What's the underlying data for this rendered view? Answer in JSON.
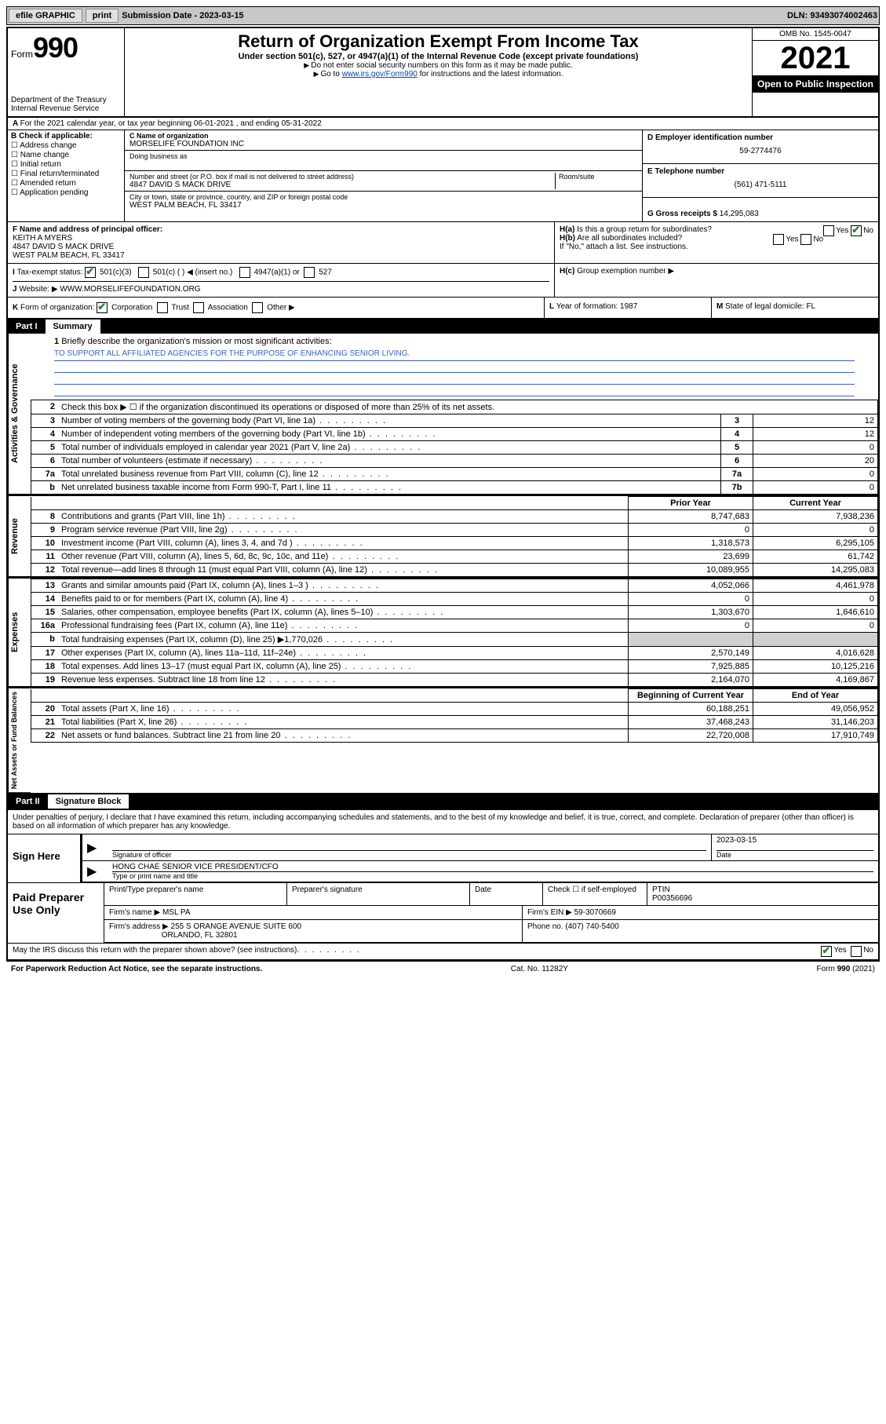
{
  "topbar": {
    "efile": "efile GRAPHIC",
    "print": "print",
    "subdate_label": "Submission Date - ",
    "subdate": "2023-03-15",
    "dln_label": "DLN: ",
    "dln": "93493074002463"
  },
  "header": {
    "form_prefix": "Form",
    "form_num": "990",
    "title": "Return of Organization Exempt From Income Tax",
    "sub": "Under section 501(c), 527, or 4947(a)(1) of the Internal Revenue Code (except private foundations)",
    "note1": "Do not enter social security numbers on this form as it may be made public.",
    "note2_pre": "Go to ",
    "note2_link": "www.irs.gov/Form990",
    "note2_post": " for instructions and the latest information.",
    "dept": "Department of the Treasury\nInternal Revenue Service",
    "omb": "OMB No. 1545-0047",
    "year": "2021",
    "inspection": "Open to Public Inspection"
  },
  "rowA": "For the 2021 calendar year, or tax year beginning 06-01-2021   , and ending 05-31-2022",
  "colB": {
    "title": "B Check if applicable:",
    "opts": [
      "Address change",
      "Name change",
      "Initial return",
      "Final return/terminated",
      "Amended return",
      "Application pending"
    ]
  },
  "nameBlock": {
    "c_label": "C Name of organization",
    "name": "MORSELIFE FOUNDATION INC",
    "dba_label": "Doing business as",
    "street_label": "Number and street (or P.O. box if mail is not delivered to street address)",
    "room_label": "Room/suite",
    "street": "4847 DAVID S MACK DRIVE",
    "city_label": "City or town, state or province, country, and ZIP or foreign postal code",
    "city": "WEST PALM BEACH, FL  33417"
  },
  "rightBlock": {
    "ein_label": "D Employer identification number",
    "ein": "59-2774476",
    "phone_label": "E Telephone number",
    "phone": "(561) 471-5111",
    "gross_label": "G Gross receipts $ ",
    "gross": "14,295,083"
  },
  "rowF": {
    "label": "F  Name and address of principal officer:",
    "name": "KEITH A MYERS",
    "addr1": "4847 DAVID S MACK DRIVE",
    "addr2": "WEST PALM BEACH, FL  33417"
  },
  "rowH": {
    "ha": "Is this a group return for subordinates?",
    "hb": "Are all subordinates included?",
    "hb_note": "If \"No,\" attach a list. See instructions.",
    "hc": "Group exemption number ▶"
  },
  "rowI": {
    "label": "Tax-exempt status:",
    "o1": "501(c)(3)",
    "o2": "501(c) (  ) ◀ (insert no.)",
    "o3": "4947(a)(1) or",
    "o4": "527"
  },
  "rowJ": {
    "label": "Website: ▶ ",
    "value": "WWW.MORSELIFEFOUNDATION.ORG"
  },
  "rowK": "Form of organization:",
  "rowK_opts": [
    "Corporation",
    "Trust",
    "Association",
    "Other ▶"
  ],
  "rowL": "Year of formation: 1987",
  "rowM": "State of legal domicile: FL",
  "part1": {
    "part": "Part I",
    "title": "Summary"
  },
  "mission": {
    "q": "Briefly describe the organization's mission or most significant activities:",
    "text": "TO SUPPORT ALL AFFILIATED AGENCIES FOR THE PURPOSE OF ENHANCING SENIOR LIVING."
  },
  "gov_lines": [
    {
      "n": "2",
      "d": "Check this box ▶ ☐  if the organization discontinued its operations or disposed of more than 25% of its net assets."
    },
    {
      "n": "3",
      "d": "Number of voting members of the governing body (Part VI, line 1a)",
      "box": "3",
      "v": "12"
    },
    {
      "n": "4",
      "d": "Number of independent voting members of the governing body (Part VI, line 1b)",
      "box": "4",
      "v": "12"
    },
    {
      "n": "5",
      "d": "Total number of individuals employed in calendar year 2021 (Part V, line 2a)",
      "box": "5",
      "v": "0"
    },
    {
      "n": "6",
      "d": "Total number of volunteers (estimate if necessary)",
      "box": "6",
      "v": "20"
    },
    {
      "n": "7a",
      "d": "Total unrelated business revenue from Part VIII, column (C), line 12",
      "box": "7a",
      "v": "0"
    },
    {
      "n": "b",
      "d": "Net unrelated business taxable income from Form 990-T, Part I, line 11",
      "box": "7b",
      "v": "0"
    }
  ],
  "rev_hdr": {
    "prior": "Prior Year",
    "curr": "Current Year"
  },
  "rev_lines": [
    {
      "n": "8",
      "d": "Contributions and grants (Part VIII, line 1h)",
      "p": "8,747,683",
      "c": "7,938,236"
    },
    {
      "n": "9",
      "d": "Program service revenue (Part VIII, line 2g)",
      "p": "0",
      "c": "0"
    },
    {
      "n": "10",
      "d": "Investment income (Part VIII, column (A), lines 3, 4, and 7d )",
      "p": "1,318,573",
      "c": "6,295,105"
    },
    {
      "n": "11",
      "d": "Other revenue (Part VIII, column (A), lines 5, 6d, 8c, 9c, 10c, and 11e)",
      "p": "23,699",
      "c": "61,742"
    },
    {
      "n": "12",
      "d": "Total revenue—add lines 8 through 11 (must equal Part VIII, column (A), line 12)",
      "p": "10,089,955",
      "c": "14,295,083"
    }
  ],
  "exp_lines": [
    {
      "n": "13",
      "d": "Grants and similar amounts paid (Part IX, column (A), lines 1–3 )",
      "p": "4,052,066",
      "c": "4,461,978"
    },
    {
      "n": "14",
      "d": "Benefits paid to or for members (Part IX, column (A), line 4)",
      "p": "0",
      "c": "0"
    },
    {
      "n": "15",
      "d": "Salaries, other compensation, employee benefits (Part IX, column (A), lines 5–10)",
      "p": "1,303,670",
      "c": "1,646,610"
    },
    {
      "n": "16a",
      "d": "Professional fundraising fees (Part IX, column (A), line 11e)",
      "p": "0",
      "c": "0"
    },
    {
      "n": "b",
      "d": "Total fundraising expenses (Part IX, column (D), line 25) ▶1,770,026",
      "p": "",
      "c": "",
      "shade": true
    },
    {
      "n": "17",
      "d": "Other expenses (Part IX, column (A), lines 11a–11d, 11f–24e)",
      "p": "2,570,149",
      "c": "4,016,628"
    },
    {
      "n": "18",
      "d": "Total expenses. Add lines 13–17 (must equal Part IX, column (A), line 25)",
      "p": "7,925,885",
      "c": "10,125,216"
    },
    {
      "n": "19",
      "d": "Revenue less expenses. Subtract line 18 from line 12",
      "p": "2,164,070",
      "c": "4,169,867"
    }
  ],
  "net_hdr": {
    "prior": "Beginning of Current Year",
    "curr": "End of Year"
  },
  "net_lines": [
    {
      "n": "20",
      "d": "Total assets (Part X, line 16)",
      "p": "60,188,251",
      "c": "49,056,952"
    },
    {
      "n": "21",
      "d": "Total liabilities (Part X, line 26)",
      "p": "37,468,243",
      "c": "31,146,203"
    },
    {
      "n": "22",
      "d": "Net assets or fund balances. Subtract line 21 from line 20",
      "p": "22,720,008",
      "c": "17,910,749"
    }
  ],
  "part2": {
    "part": "Part II",
    "title": "Signature Block"
  },
  "penalties": "Under penalties of perjury, I declare that I have examined this return, including accompanying schedules and statements, and to the best of my knowledge and belief, it is true, correct, and complete. Declaration of preparer (other than officer) is based on all information of which preparer has any knowledge.",
  "sign": {
    "here": "Sign Here",
    "sig_label": "Signature of officer",
    "date": "2023-03-15",
    "date_label": "Date",
    "name": "HONG CHAE  SENIOR VICE PRESIDENT/CFO",
    "name_label": "Type or print name and title"
  },
  "paid": {
    "title": "Paid Preparer Use Only",
    "h1": "Print/Type preparer's name",
    "h2": "Preparer's signature",
    "h3": "Date",
    "h4_a": "Check ☐ if self-employed",
    "h4_b": "PTIN",
    "ptin": "P00356696",
    "firm_label": "Firm's name    ▶",
    "firm": "MSL PA",
    "firm_ein_label": "Firm's EIN ▶",
    "firm_ein": "59-3070669",
    "addr_label": "Firm's address ▶",
    "addr1": "255 S ORANGE AVENUE SUITE 600",
    "addr2": "ORLANDO, FL  32801",
    "phone_label": "Phone no.",
    "phone": "(407) 740-5400"
  },
  "may_discuss": "May the IRS discuss this return with the preparer shown above? (see instructions)",
  "footer": {
    "left": "For Paperwork Reduction Act Notice, see the separate instructions.",
    "mid": "Cat. No. 11282Y",
    "right": "Form 990 (2021)"
  },
  "vlabels": {
    "gov": "Activities & Governance",
    "rev": "Revenue",
    "exp": "Expenses",
    "net": "Net Assets or Fund Balances"
  }
}
